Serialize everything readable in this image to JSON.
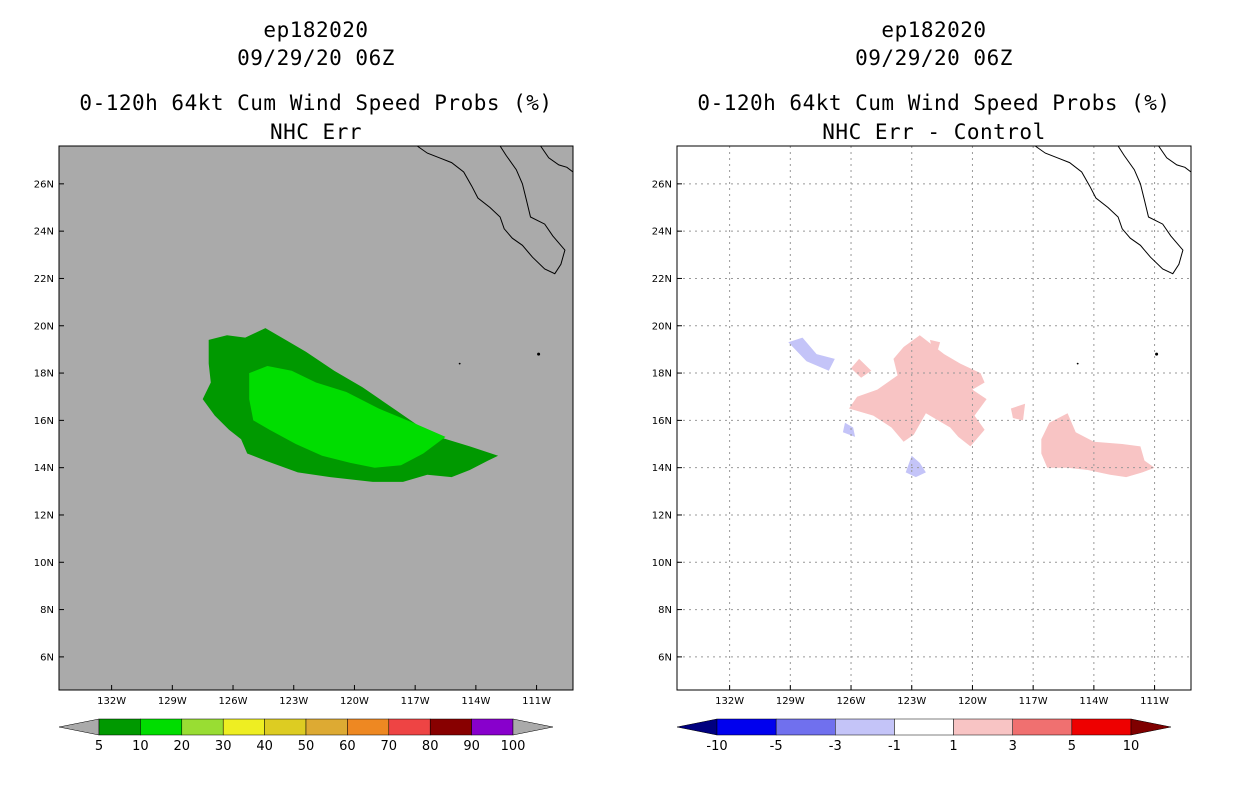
{
  "left_panel": {
    "title_line1": "ep182020",
    "title_line2": "09/29/20 06Z",
    "title_line3": "0-120h 64kt Cum Wind Speed Probs (%)",
    "title_line4": "NHC Err"
  },
  "right_panel": {
    "title_line1": "ep182020",
    "title_line2": "09/29/20 06Z",
    "title_line3": "0-120h 64kt Cum Wind Speed Probs (%)",
    "title_line4": "NHC Err - Control"
  },
  "chart_data": [
    {
      "type": "heatmap",
      "panel": "left",
      "title": "0-120h 64kt Cum Wind Speed Probs (%) NHC Err",
      "xlim": [
        -134.6,
        -109.2
      ],
      "ylim": [
        4.6,
        27.6
      ],
      "x_ticks": [
        -132,
        -129,
        -126,
        -123,
        -120,
        -117,
        -114,
        -111
      ],
      "x_tick_labels": [
        "132W",
        "129W",
        "126W",
        "123W",
        "120W",
        "117W",
        "114W",
        "111W"
      ],
      "y_ticks": [
        6,
        8,
        10,
        12,
        14,
        16,
        18,
        20,
        22,
        24,
        26
      ],
      "y_tick_labels": [
        "6N",
        "8N",
        "10N",
        "12N",
        "14N",
        "16N",
        "18N",
        "20N",
        "22N",
        "24N",
        "26N"
      ],
      "grid": false,
      "background": "#aaaaaa",
      "colorbar": {
        "levels": [
          "5",
          "10",
          "20",
          "30",
          "40",
          "50",
          "60",
          "70",
          "80",
          "90",
          "100"
        ],
        "colors": [
          "#009900",
          "#00dd00",
          "#99dd33",
          "#eeee22",
          "#ddcc22",
          "#ddaa33",
          "#ee8822",
          "#ee4444",
          "#880000",
          "#8800cc"
        ],
        "low_color": "#aaaaaa",
        "high_color": "#aaaaaa"
      },
      "contours": [
        {
          "level": "5-10",
          "color": "#009900",
          "polygon": [
            [
              -127.2,
              19.4
            ],
            [
              -126.3,
              19.6
            ],
            [
              -125.4,
              19.5
            ],
            [
              -124.4,
              19.9
            ],
            [
              -123.4,
              19.4
            ],
            [
              -122.4,
              18.9
            ],
            [
              -121.0,
              18.1
            ],
            [
              -119.6,
              17.4
            ],
            [
              -117.9,
              16.4
            ],
            [
              -116.2,
              15.4
            ],
            [
              -114.3,
              14.9
            ],
            [
              -112.9,
              14.5
            ],
            [
              -113.4,
              14.3
            ],
            [
              -114.3,
              13.9
            ],
            [
              -115.2,
              13.6
            ],
            [
              -116.4,
              13.7
            ],
            [
              -117.6,
              13.4
            ],
            [
              -119.1,
              13.4
            ],
            [
              -121.2,
              13.6
            ],
            [
              -122.8,
              13.8
            ],
            [
              -124.4,
              14.3
            ],
            [
              -125.3,
              14.6
            ],
            [
              -125.6,
              15.2
            ],
            [
              -126.2,
              15.6
            ],
            [
              -126.9,
              16.2
            ],
            [
              -127.5,
              16.9
            ],
            [
              -127.1,
              17.6
            ],
            [
              -127.2,
              18.4
            ]
          ]
        },
        {
          "level": "10-20",
          "color": "#00dd00",
          "polygon": [
            [
              -125.2,
              18.0
            ],
            [
              -124.3,
              18.3
            ],
            [
              -123.1,
              18.1
            ],
            [
              -121.9,
              17.6
            ],
            [
              -120.4,
              17.2
            ],
            [
              -118.8,
              16.5
            ],
            [
              -117.1,
              15.9
            ],
            [
              -115.5,
              15.3
            ],
            [
              -116.6,
              14.6
            ],
            [
              -117.7,
              14.1
            ],
            [
              -119.0,
              14.0
            ],
            [
              -120.2,
              14.2
            ],
            [
              -121.6,
              14.5
            ],
            [
              -122.9,
              15.0
            ],
            [
              -124.2,
              15.6
            ],
            [
              -125.0,
              16.0
            ],
            [
              -125.2,
              16.9
            ]
          ]
        }
      ]
    },
    {
      "type": "heatmap",
      "panel": "right",
      "title": "0-120h 64kt Cum Wind Speed Probs (%) NHC Err - Control",
      "xlim": [
        -134.6,
        -109.2
      ],
      "ylim": [
        4.6,
        27.6
      ],
      "x_ticks": [
        -132,
        -129,
        -126,
        -123,
        -120,
        -117,
        -114,
        -111
      ],
      "x_tick_labels": [
        "132W",
        "129W",
        "126W",
        "123W",
        "120W",
        "117W",
        "114W",
        "111W"
      ],
      "y_ticks": [
        6,
        8,
        10,
        12,
        14,
        16,
        18,
        20,
        22,
        24,
        26
      ],
      "y_tick_labels": [
        "6N",
        "8N",
        "10N",
        "12N",
        "14N",
        "16N",
        "18N",
        "20N",
        "22N",
        "24N",
        "26N"
      ],
      "grid": true,
      "background": "#ffffff",
      "colorbar": {
        "levels": [
          "-10",
          "-5",
          "-3",
          "-1",
          "1",
          "3",
          "5",
          "10"
        ],
        "colors": [
          "#0000ee",
          "#7070ee",
          "#c4c4f8",
          "#ffffff",
          "#f8c4c4",
          "#f07070",
          "#ee0000"
        ],
        "low_color": "#00007f",
        "high_color": "#7f0000"
      },
      "contours": [
        {
          "level": "1-3",
          "color": "#f8c4c4",
          "polygon": [
            [
              -123.4,
              19.1
            ],
            [
              -122.6,
              19.6
            ],
            [
              -121.4,
              18.8
            ],
            [
              -120.6,
              18.4
            ],
            [
              -119.6,
              18.0
            ],
            [
              -119.4,
              17.6
            ],
            [
              -120.0,
              17.3
            ],
            [
              -119.3,
              16.9
            ],
            [
              -119.9,
              16.2
            ],
            [
              -119.4,
              15.6
            ],
            [
              -120.1,
              14.9
            ],
            [
              -120.7,
              15.3
            ],
            [
              -121.1,
              15.7
            ],
            [
              -121.9,
              16.1
            ],
            [
              -122.3,
              16.3
            ],
            [
              -122.9,
              15.4
            ],
            [
              -123.4,
              15.1
            ],
            [
              -124.0,
              15.7
            ],
            [
              -124.9,
              16.2
            ],
            [
              -126.1,
              16.5
            ],
            [
              -125.7,
              17.0
            ],
            [
              -124.7,
              17.3
            ],
            [
              -123.7,
              17.9
            ],
            [
              -123.9,
              18.6
            ]
          ]
        },
        {
          "level": "1-3",
          "color": "#f8c4c4",
          "polygon": [
            [
              -125.6,
              18.6
            ],
            [
              -125.0,
              18.1
            ],
            [
              -125.5,
              17.8
            ],
            [
              -126.0,
              18.2
            ]
          ]
        },
        {
          "level": "1-3",
          "color": "#f8c4c4",
          "polygon": [
            [
              -122.1,
              19.4
            ],
            [
              -121.6,
              19.3
            ],
            [
              -121.7,
              19.0
            ],
            [
              -122.0,
              19.0
            ]
          ]
        },
        {
          "level": "1-3",
          "color": "#f8c4c4",
          "polygon": [
            [
              -118.1,
              16.5
            ],
            [
              -117.4,
              16.7
            ],
            [
              -117.5,
              16.0
            ],
            [
              -118.0,
              16.1
            ]
          ]
        },
        {
          "level": "1-3",
          "color": "#f8c4c4",
          "polygon": [
            [
              -116.2,
              15.9
            ],
            [
              -115.3,
              16.3
            ],
            [
              -114.9,
              15.5
            ],
            [
              -114.0,
              15.1
            ],
            [
              -112.6,
              15.0
            ],
            [
              -111.7,
              14.9
            ],
            [
              -111.5,
              14.3
            ],
            [
              -111.0,
              14.0
            ],
            [
              -111.6,
              13.8
            ],
            [
              -112.4,
              13.6
            ],
            [
              -113.2,
              13.7
            ],
            [
              -114.3,
              13.9
            ],
            [
              -115.3,
              14.0
            ],
            [
              -116.3,
              14.0
            ],
            [
              -116.6,
              14.6
            ],
            [
              -116.6,
              15.2
            ]
          ]
        },
        {
          "level": "-3--1",
          "color": "#c4c4f8",
          "polygon": [
            [
              -129.1,
              19.3
            ],
            [
              -128.4,
              19.5
            ],
            [
              -127.7,
              18.8
            ],
            [
              -126.8,
              18.6
            ],
            [
              -127.1,
              18.1
            ],
            [
              -128.2,
              18.5
            ]
          ]
        },
        {
          "level": "-3--1",
          "color": "#c4c4f8",
          "polygon": [
            [
              -123.0,
              14.5
            ],
            [
              -122.6,
              14.2
            ],
            [
              -122.3,
              13.8
            ],
            [
              -122.8,
              13.6
            ],
            [
              -123.3,
              13.8
            ]
          ]
        },
        {
          "level": "-3--1",
          "color": "#c4c4f8",
          "polygon": [
            [
              -126.3,
              15.9
            ],
            [
              -125.9,
              15.7
            ],
            [
              -125.8,
              15.3
            ],
            [
              -126.4,
              15.5
            ]
          ]
        }
      ]
    }
  ]
}
